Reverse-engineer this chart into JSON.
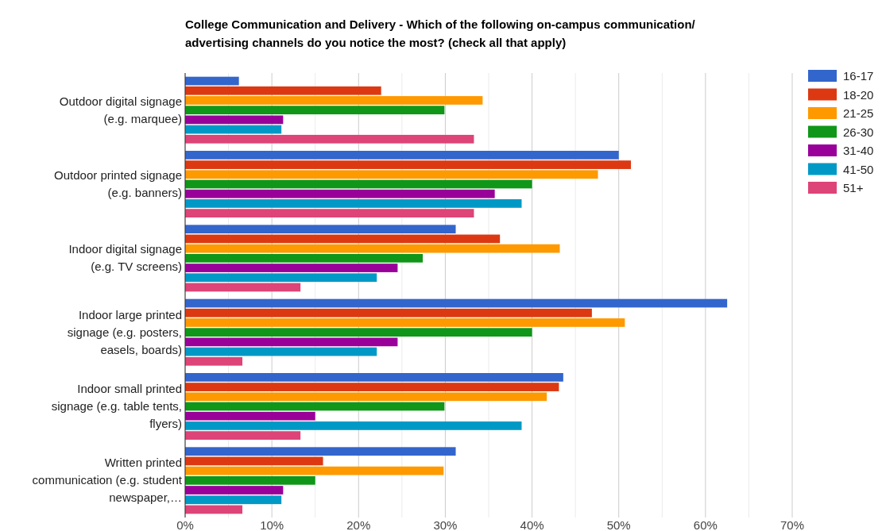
{
  "chart_data": {
    "type": "bar",
    "orientation": "horizontal",
    "title": "College Communication and Delivery - Which of the following on-campus communication/ advertising channels do you notice the most? (check all that apply)",
    "categories": [
      "Outdoor digital signage (e.g. marquee)",
      "Outdoor printed signage (e.g. banners)",
      "Indoor digital signage (e.g. TV screens)",
      "Indoor large printed signage (e.g. posters, easels, boards)",
      "Indoor small printed signage (e.g. table tents, flyers)",
      "Written printed communication (e.g. student newspaper,…"
    ],
    "series": [
      {
        "name": "16-17",
        "color": "#3366cc",
        "values": [
          6.2,
          50,
          31.2,
          62.5,
          43.6,
          31.2
        ]
      },
      {
        "name": "18-20",
        "color": "#dc3912",
        "values": [
          22.6,
          51.4,
          36.3,
          46.9,
          43.1,
          15.9
        ]
      },
      {
        "name": "21-25",
        "color": "#ff9900",
        "values": [
          34.3,
          47.6,
          43.2,
          50.7,
          41.7,
          29.8
        ]
      },
      {
        "name": "26-30",
        "color": "#109618",
        "values": [
          29.9,
          40,
          27.4,
          40,
          29.9,
          15
        ]
      },
      {
        "name": "31-40",
        "color": "#990099",
        "values": [
          11.3,
          35.7,
          24.5,
          24.5,
          15,
          11.3
        ]
      },
      {
        "name": "41-50",
        "color": "#0099c6",
        "values": [
          11.1,
          38.8,
          22.1,
          22.1,
          38.8,
          11.1
        ]
      },
      {
        "name": "51+",
        "color": "#dd4477",
        "values": [
          33.3,
          33.3,
          13.3,
          6.6,
          13.3,
          6.6
        ]
      }
    ],
    "xlim": [
      0,
      70
    ],
    "xticks": [
      {
        "value": 0,
        "label": "0%"
      },
      {
        "value": 5,
        "label": null
      },
      {
        "value": 10,
        "label": "10%"
      },
      {
        "value": 15,
        "label": null
      },
      {
        "value": 20,
        "label": "20%"
      },
      {
        "value": 25,
        "label": null
      },
      {
        "value": 30,
        "label": "30%"
      },
      {
        "value": 35,
        "label": null
      },
      {
        "value": 40,
        "label": "40%"
      },
      {
        "value": 45,
        "label": null
      },
      {
        "value": 50,
        "label": "50%"
      },
      {
        "value": 55,
        "label": null
      },
      {
        "value": 60,
        "label": "60%"
      },
      {
        "value": 65,
        "label": null
      },
      {
        "value": 70,
        "label": "70%"
      }
    ],
    "grid": true,
    "legend": "right"
  }
}
